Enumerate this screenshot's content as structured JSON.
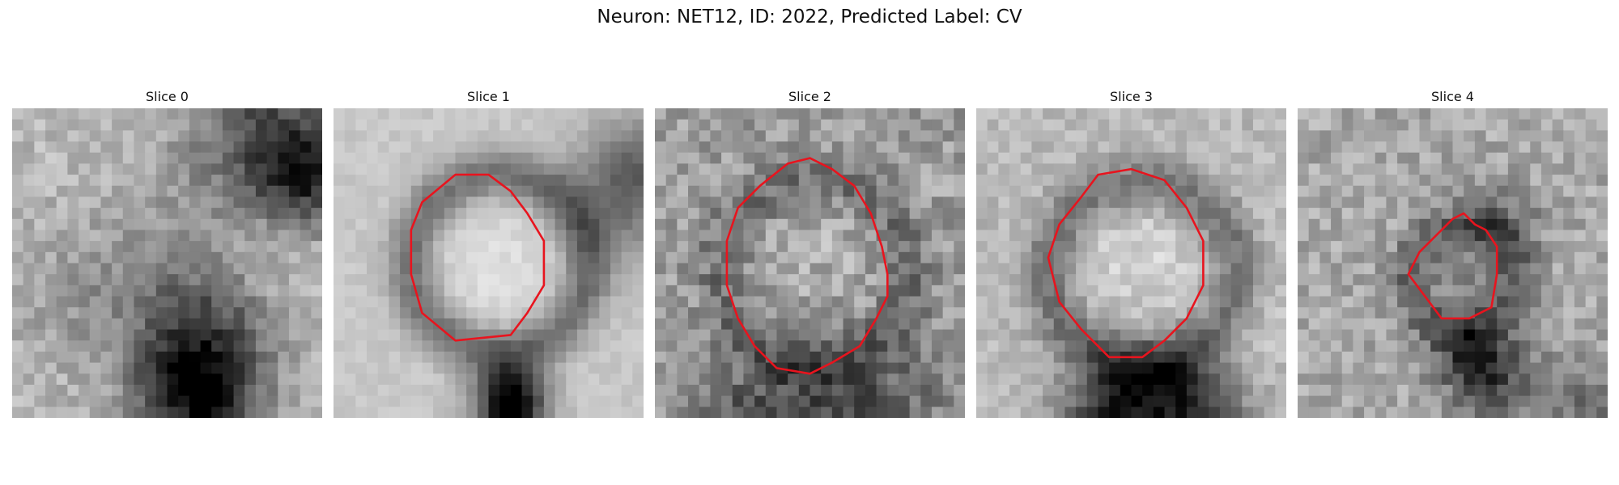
{
  "figure": {
    "title": "Neuron: NET12, ID: 2022, Predicted Label: CV",
    "contour_color": "#e8141e",
    "colormap": "gray",
    "panels": [
      {
        "title": "Slice 0",
        "has_contour": false,
        "base": 0.72,
        "contrast": 0.55,
        "noise": 0.2
      },
      {
        "title": "Slice 1",
        "has_contour": true,
        "base": 0.78,
        "contrast": 0.6,
        "noise": 0.08
      },
      {
        "title": "Slice 2",
        "has_contour": true,
        "base": 0.62,
        "contrast": 0.45,
        "noise": 0.28
      },
      {
        "title": "Slice 3",
        "has_contour": true,
        "base": 0.72,
        "contrast": 0.55,
        "noise": 0.16
      },
      {
        "title": "Slice 4",
        "has_contour": true,
        "base": 0.66,
        "contrast": 0.45,
        "noise": 0.24
      }
    ]
  }
}
